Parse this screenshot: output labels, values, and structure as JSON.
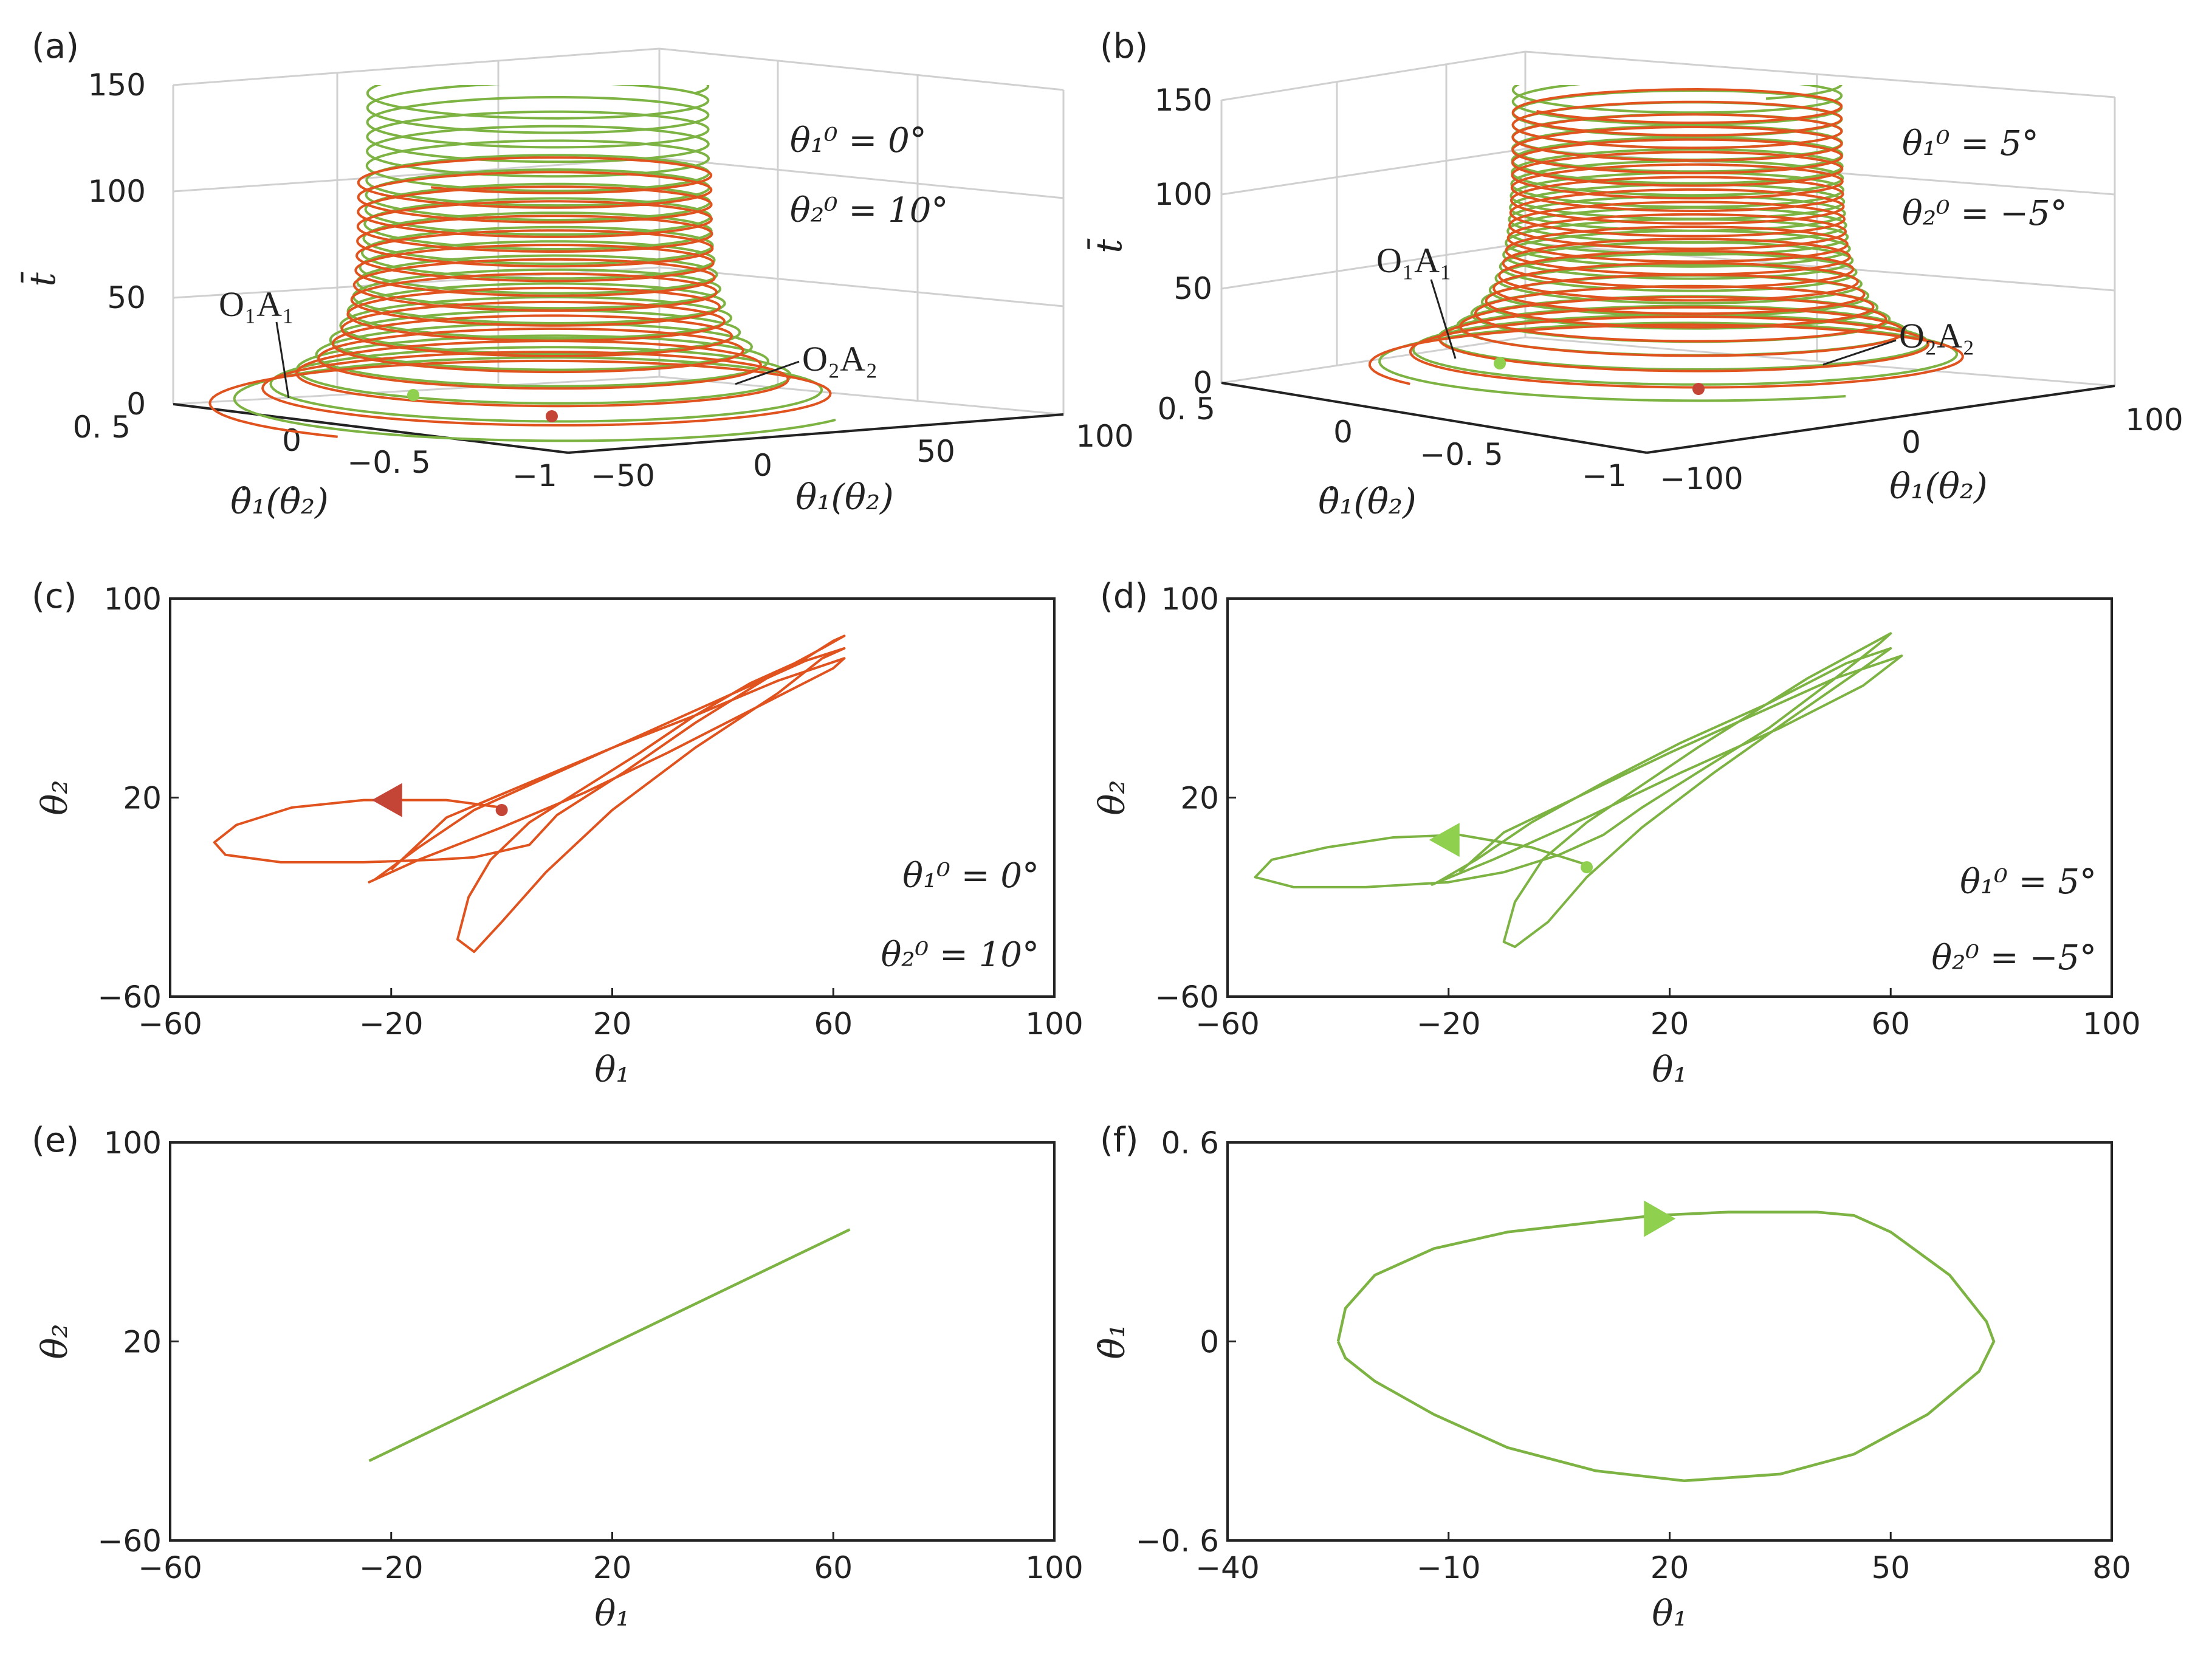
{
  "colors": {
    "orange": "#e0531f",
    "green": "#7cb342",
    "red_marker": "#c44536",
    "light_green_marker": "#8fd14f",
    "axis": "#222222",
    "grid": "#d0d0d0"
  },
  "chart_data": [
    {
      "id": "a",
      "type": "line3d",
      "panel_label": "(a)",
      "zlabel": "t̄",
      "xlabel": "θ₁(θ₂)",
      "ylabel": "θ̇₁(θ̇₂)",
      "z_ticks": [
        "0",
        "50",
        "100",
        "150"
      ],
      "x_ticks": [
        "−50",
        "0",
        "50",
        "100"
      ],
      "y_ticks": [
        "0. 5",
        "0",
        "−0. 5",
        "−1"
      ],
      "annotation": {
        "line1": "θ₁⁰ = 0°",
        "line2": "θ₂⁰ = 10°"
      },
      "trajectory_labels": [
        "O₁A₁",
        "O₂A₂"
      ],
      "series": [
        {
          "name": "O₁A₁",
          "color": "orange",
          "description": "helix trajectory, t̄ from 0 to ~110"
        },
        {
          "name": "O₂A₂",
          "color": "green",
          "description": "helix trajectory, t̄ from 0 to 150"
        }
      ]
    },
    {
      "id": "b",
      "type": "line3d",
      "panel_label": "(b)",
      "zlabel": "t̄",
      "xlabel": "θ₁(θ₂)",
      "ylabel": "θ̇₁(θ̇₂)",
      "z_ticks": [
        "0",
        "50",
        "100",
        "150"
      ],
      "x_ticks": [
        "−100",
        "0",
        "100"
      ],
      "y_ticks": [
        "0. 5",
        "0",
        "−0. 5",
        "−1"
      ],
      "annotation": {
        "line1": "θ₁⁰ = 5°",
        "line2": "θ₂⁰ = −5°"
      },
      "trajectory_labels": [
        "O₁A₁",
        "O₂A₂"
      ],
      "series": [
        {
          "name": "O₁A₁",
          "color": "orange",
          "description": "helix trajectory, t̄ from 0 to ~140"
        },
        {
          "name": "O₂A₂",
          "color": "green",
          "description": "helix trajectory, t̄ from 0 to 150"
        }
      ]
    },
    {
      "id": "c",
      "type": "line",
      "panel_label": "(c)",
      "xlabel": "θ₁",
      "ylabel": "θ₂",
      "xlim": [
        -60,
        100
      ],
      "ylim": [
        -60,
        100
      ],
      "x_ticks": [
        "−60",
        "−20",
        "20",
        "60",
        "100"
      ],
      "y_ticks": [
        "−60",
        "20",
        "100"
      ],
      "annotation": {
        "line1": "θ₁⁰ = 0°",
        "line2": "θ₂⁰ = 10°"
      },
      "series": [
        {
          "name": "θ₂ vs θ₁",
          "color": "orange",
          "x": [
            0,
            -10,
            -25,
            -38,
            -48,
            -52,
            -50,
            -40,
            -25,
            -12,
            -5,
            5,
            10,
            22,
            35,
            48,
            58,
            62,
            60,
            55,
            45,
            35,
            25,
            15,
            5,
            -2,
            -6,
            -8,
            -5,
            0,
            8,
            20,
            35,
            50,
            58,
            62,
            55,
            40,
            25,
            10,
            -5,
            -15,
            -23,
            -24,
            -15,
            0,
            15,
            30,
            45,
            60,
            62,
            50,
            35,
            20,
            5,
            -10,
            -20
          ],
          "y": [
            16,
            19,
            19,
            16,
            9,
            2,
            -3,
            -6,
            -6,
            -5,
            -4,
            1,
            13,
            30,
            50,
            68,
            80,
            85,
            83,
            76,
            66,
            53,
            38,
            24,
            10,
            -5,
            -20,
            -37,
            -42,
            -30,
            -10,
            15,
            40,
            62,
            76,
            80,
            75,
            60,
            45,
            30,
            15,
            0,
            -13,
            -14,
            -5,
            8,
            22,
            38,
            55,
            72,
            76,
            67,
            53,
            40,
            26,
            12,
            -9
          ]
        },
        {
          "name": "release point",
          "color": "red_marker",
          "x": [
            0
          ],
          "y": [
            15
          ]
        }
      ]
    },
    {
      "id": "d",
      "type": "line",
      "panel_label": "(d)",
      "xlabel": "θ₁",
      "ylabel": "θ₂",
      "xlim": [
        -60,
        100
      ],
      "ylim": [
        -60,
        100
      ],
      "x_ticks": [
        "−60",
        "−20",
        "20",
        "60",
        "100"
      ],
      "y_ticks": [
        "−60",
        "20",
        "100"
      ],
      "annotation": {
        "line1": "θ₁⁰ = 5°",
        "line2": "θ₂⁰ = −5°"
      },
      "series": [
        {
          "name": "θ₂ vs θ₁",
          "color": "green",
          "x": [
            5,
            -5,
            -18,
            -30,
            -42,
            -52,
            -55,
            -48,
            -35,
            -20,
            -10,
            0,
            8,
            15,
            25,
            38,
            50,
            58,
            60,
            55,
            45,
            35,
            25,
            15,
            5,
            -3,
            -8,
            -10,
            -8,
            -2,
            5,
            15,
            28,
            42,
            55,
            60,
            52,
            38,
            22,
            8,
            -5,
            -15,
            -22,
            -23,
            -12,
            5,
            22,
            40,
            55,
            62,
            50,
            35,
            20,
            5,
            -10,
            -18
          ],
          "y": [
            -7,
            0,
            5,
            4,
            0,
            -5,
            -12,
            -16,
            -16,
            -14,
            -10,
            -3,
            5,
            16,
            30,
            48,
            68,
            82,
            86,
            80,
            68,
            54,
            40,
            25,
            10,
            -5,
            -22,
            -38,
            -40,
            -30,
            -12,
            8,
            30,
            52,
            72,
            80,
            74,
            58,
            42,
            26,
            10,
            -5,
            -14,
            -15,
            -5,
            12,
            30,
            48,
            65,
            77,
            68,
            53,
            38,
            22,
            6,
            -10
          ]
        },
        {
          "name": "release point",
          "color": "light_green_marker",
          "x": [
            5
          ],
          "y": [
            -8
          ]
        }
      ]
    },
    {
      "id": "e",
      "type": "line",
      "panel_label": "(e)",
      "xlabel": "θ₁",
      "ylabel": "θ₂",
      "xlim": [
        -60,
        100
      ],
      "ylim": [
        -60,
        100
      ],
      "x_ticks": [
        "−60",
        "−20",
        "20",
        "60",
        "100"
      ],
      "y_ticks": [
        "−60",
        "20",
        "100"
      ],
      "series": [
        {
          "name": "θ₂ vs θ₁",
          "color": "green",
          "x": [
            -24,
            63
          ],
          "y": [
            -28,
            65
          ]
        }
      ]
    },
    {
      "id": "f",
      "type": "line",
      "panel_label": "(f)",
      "xlabel": "θ₁",
      "ylabel": "θ̇₁",
      "xlim": [
        -40,
        80
      ],
      "ylim": [
        -0.6,
        0.6
      ],
      "x_ticks": [
        "−40",
        "−10",
        "20",
        "50",
        "80"
      ],
      "y_ticks": [
        "−0. 6",
        "0",
        "0. 6"
      ],
      "series": [
        {
          "name": "θ̇₁ vs θ₁",
          "color": "green",
          "x": [
            -25,
            -24,
            -20,
            -12,
            -2,
            10,
            18,
            28,
            40,
            45,
            50,
            58,
            63,
            64,
            62,
            55,
            45,
            35,
            22,
            10,
            -2,
            -12,
            -20,
            -24,
            -25
          ],
          "y": [
            0.0,
            0.1,
            0.2,
            0.28,
            0.33,
            0.36,
            0.38,
            0.39,
            0.39,
            0.38,
            0.33,
            0.2,
            0.06,
            0.0,
            -0.09,
            -0.22,
            -0.34,
            -0.4,
            -0.42,
            -0.39,
            -0.32,
            -0.22,
            -0.12,
            -0.05,
            0.0
          ]
        }
      ]
    }
  ]
}
